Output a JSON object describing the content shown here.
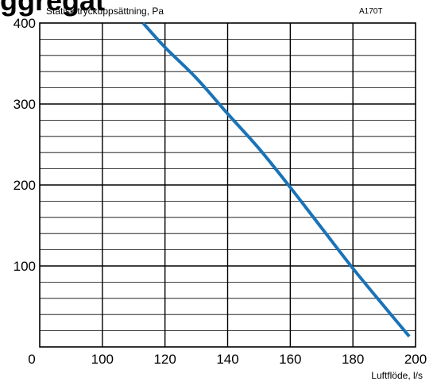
{
  "header": {
    "title_fragment": "ggregat",
    "code": "A170T"
  },
  "chart_data": {
    "type": "line",
    "title": "",
    "xlabel": "Luftflöde, l/s",
    "ylabel": "Statisk tryckuppsättning, Pa",
    "xlim": [
      0,
      200
    ],
    "ylim": [
      0,
      400
    ],
    "x_ticks": [
      0,
      100,
      120,
      140,
      160,
      180,
      200
    ],
    "y_ticks": [
      100,
      200,
      300,
      400
    ],
    "x_tick_labels": [
      "0",
      "100",
      "120",
      "140",
      "160",
      "180",
      "200"
    ],
    "y_tick_labels": [
      "100",
      "200",
      "300",
      "400"
    ],
    "grid": true,
    "series": [
      {
        "color": "#1a73b8",
        "x": [
          113,
          120,
          130,
          140,
          150,
          160,
          170,
          180,
          190,
          198
        ],
        "y": [
          400,
          370,
          332,
          288,
          245,
          197,
          147,
          97,
          50,
          13
        ]
      }
    ]
  }
}
